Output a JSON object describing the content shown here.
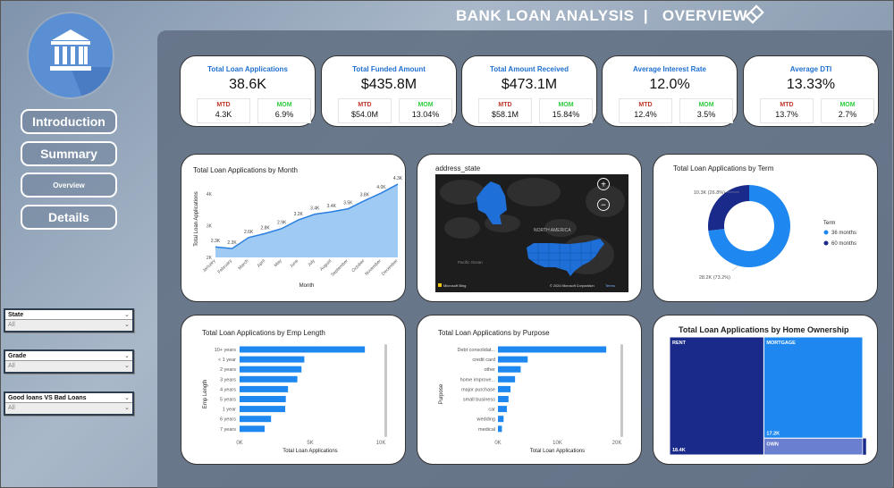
{
  "header": {
    "title": "BANK LOAN ANALYSIS  |   OVERVIEW"
  },
  "nav": [
    {
      "label": "Introduction"
    },
    {
      "label": "Summary"
    },
    {
      "label": "Overview"
    },
    {
      "label": "Details"
    }
  ],
  "kpis": [
    {
      "title": "Total Loan Applications",
      "value": "38.6K",
      "mtd_label": "MTD",
      "mtd": "4.3K",
      "mom_label": "MOM",
      "mom": "6.9%"
    },
    {
      "title": "Total Funded Amount",
      "value": "$435.8M",
      "mtd_label": "MTD",
      "mtd": "$54.0M",
      "mom_label": "MOM",
      "mom": "13.04%"
    },
    {
      "title": "Total Amount Received",
      "value": "$473.1M",
      "mtd_label": "MTD",
      "mtd": "$58.1M",
      "mom_label": "MOM",
      "mom": "15.84%"
    },
    {
      "title": "Average Interest Rate",
      "value": "12.0%",
      "mtd_label": "MTD",
      "mtd": "12.4%",
      "mom_label": "MOM",
      "mom": "3.5%"
    },
    {
      "title": "Average DTI",
      "value": "13.33%",
      "mtd_label": "MTD",
      "mtd": "13.7%",
      "mom_label": "MOM",
      "mom": "2.7%"
    }
  ],
  "map": {
    "title": "address_state",
    "label_north_america": "NORTH AMERICA",
    "label_pacific": "Pacific Ocean",
    "attribution_left": "Microsoft Bing",
    "attribution_right": "© 2024 Microsoft Corporation",
    "terms": "Terms",
    "zoom_in": "+",
    "zoom_out": "−"
  },
  "slicers": [
    {
      "label": "State",
      "value": "All"
    },
    {
      "label": "Grade",
      "value": "All"
    },
    {
      "label": "Good loans VS Bad Loans",
      "value": "All"
    }
  ],
  "colors": {
    "accent": "#1f6fcf",
    "bar": "#1e88f0",
    "navy": "#1a2a8a",
    "mtd": "#c0392b",
    "mom": "#2ecc40"
  },
  "chart_data": [
    {
      "type": "area",
      "title": "Total Loan Applications by Month",
      "xlabel": "Month",
      "ylabel": "Total Loan Applications",
      "categories": [
        "January",
        "February",
        "March",
        "April",
        "May",
        "June",
        "July",
        "August",
        "September",
        "October",
        "November",
        "December"
      ],
      "values": [
        2332,
        2279,
        2627,
        2755,
        2911,
        3184,
        3366,
        3441,
        3536,
        3796,
        4035,
        4314
      ],
      "data_labels": [
        "2.3K",
        "2.3K",
        "2.6K",
        "2.8K",
        "2.9K",
        "3.2K",
        "3.4K",
        "3.4K",
        "3.5K",
        "3.8K",
        "4.0K",
        "4.3K"
      ],
      "y_ticks": [
        "2K",
        "3K",
        "4K"
      ],
      "ylim": [
        2000,
        4400
      ]
    },
    {
      "type": "pie",
      "title": "Total Loan Applications by Term",
      "legend_title": "Term",
      "series": [
        {
          "name": "36 months",
          "value": 28237,
          "label": "28.2K (73.2%)",
          "color": "#1e88f0"
        },
        {
          "name": "60 months",
          "value": 10339,
          "label": "10.3K (26.8%)",
          "color": "#1a2a8a"
        }
      ]
    },
    {
      "type": "bar",
      "title": "Total Loan Applications by Emp Length",
      "xlabel": "Total Loan Applications",
      "ylabel": "Emp Length",
      "categories": [
        "10+ years",
        "< 1 year",
        "2 years",
        "3 years",
        "4 years",
        "5 years",
        "1 year",
        "6 years",
        "7 years"
      ],
      "values": [
        8870,
        4583,
        4382,
        4088,
        3428,
        3273,
        3229,
        2228,
        1773
      ],
      "x_ticks": [
        "0K",
        "5K",
        "10K"
      ],
      "xlim": [
        0,
        10000
      ]
    },
    {
      "type": "bar",
      "title": "Total Loan Applications by Purpose",
      "xlabel": "Total Loan Applications",
      "ylabel": "Purpose",
      "categories": [
        "Debt consolidat...",
        "credit card",
        "other",
        "home improve...",
        "major purchase",
        "small business",
        "car",
        "wedding",
        "medical"
      ],
      "values": [
        18214,
        4998,
        3824,
        2876,
        2110,
        1776,
        1497,
        947,
        667
      ],
      "x_ticks": [
        "0K",
        "10K",
        "20K"
      ],
      "xlim": [
        0,
        20000
      ]
    },
    {
      "type": "heatmap",
      "title": "Total Loan Applications by Home Ownership",
      "series": [
        {
          "name": "RENT",
          "value": 18439,
          "label": "18.4K",
          "color": "#1a2a8a"
        },
        {
          "name": "MORTGAGE",
          "value": 17198,
          "label": "17.2K",
          "color": "#1e88f0"
        },
        {
          "name": "OWN",
          "value": 2838,
          "label": "",
          "color": "#6a7fd0"
        }
      ]
    }
  ]
}
